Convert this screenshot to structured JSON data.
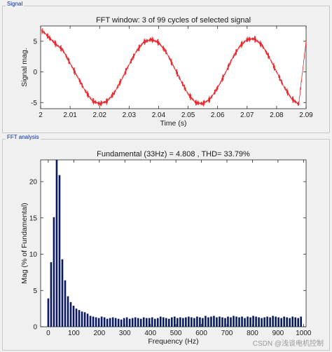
{
  "signal_panel": {
    "title": "Signal"
  },
  "fft_panel": {
    "title": "FFT analysis"
  },
  "watermark": "CSDN @浅谈电机控制",
  "chart_data": [
    {
      "type": "line",
      "title": "FFT window: 3 of 99 cycles of selected signal",
      "xlabel": "Time (s)",
      "ylabel": "Signal mag.",
      "xlim": [
        2,
        2.09
      ],
      "ylim": [
        -6,
        7.5
      ],
      "xticks": [
        "2",
        "2.01",
        "2.02",
        "2.03",
        "2.04",
        "2.05",
        "2.06",
        "2.07",
        "2.08",
        "2.09"
      ],
      "yticks": [
        "-5",
        "0",
        "5"
      ],
      "series": [
        {
          "color": "#e8262b",
          "fundamental_hz": 33,
          "amplitude": 5.1,
          "ripple": 0.6,
          "x": [
            2.0,
            2.005,
            2.0075,
            2.01,
            2.0125,
            2.015,
            2.0175,
            2.02,
            2.0225,
            2.025,
            2.0275,
            2.03,
            2.0325,
            2.035,
            2.0375,
            2.04,
            2.0425,
            2.045,
            2.0475,
            2.05,
            2.0525,
            2.055,
            2.0575,
            2.06,
            2.0625,
            2.065,
            2.0675,
            2.07,
            2.0725,
            2.075,
            2.0775,
            2.08,
            2.0825,
            2.085,
            2.0875,
            2.09
          ],
          "y": [
            7.0,
            4.6,
            3.6,
            1.4,
            -0.8,
            -3.0,
            -4.7,
            -5.2,
            -4.8,
            -3.4,
            -1.2,
            1.2,
            3.4,
            4.9,
            5.3,
            4.8,
            3.3,
            1.0,
            -1.4,
            -3.6,
            -5.0,
            -5.2,
            -4.4,
            -2.6,
            -0.3,
            2.2,
            4.2,
            5.3,
            5.4,
            4.4,
            2.4,
            0.0,
            -2.4,
            -4.3,
            -5.3,
            5.0
          ]
        }
      ]
    },
    {
      "type": "bar",
      "title": "Fundamental (33Hz) = 4.808 , THD= 33.79%",
      "xlabel": "Frequency (Hz)",
      "ylabel": "Mag (% of Fundamental)",
      "xlim": [
        -30,
        1010
      ],
      "ylim": [
        0,
        23
      ],
      "bar_color": "#0b1a5e",
      "xticks": [
        "0",
        "100",
        "200",
        "300",
        "400",
        "500",
        "600",
        "700",
        "800",
        "900",
        "1000"
      ],
      "yticks": [
        "0",
        "5",
        "10",
        "15",
        "20"
      ],
      "x": [
        0,
        11,
        22,
        33,
        44,
        55,
        66,
        77,
        88,
        99,
        110,
        121,
        132,
        143,
        154,
        165,
        176,
        187,
        198,
        209,
        220,
        231,
        242,
        253,
        264,
        275,
        286,
        297,
        308,
        319,
        330,
        341,
        352,
        363,
        374,
        385,
        396,
        407,
        418,
        429,
        440,
        451,
        462,
        473,
        484,
        495,
        506,
        517,
        528,
        539,
        550,
        561,
        572,
        583,
        594,
        605,
        616,
        627,
        638,
        649,
        660,
        671,
        682,
        693,
        704,
        715,
        726,
        737,
        748,
        759,
        770,
        781,
        792,
        803,
        814,
        825,
        836,
        847,
        858,
        869,
        880,
        891,
        902,
        913,
        924,
        935,
        946,
        957,
        968,
        979,
        990
      ],
      "values": [
        3.9,
        8.9,
        15.1,
        23.0,
        20.9,
        9.3,
        6.4,
        4.2,
        3.4,
        2.9,
        2.5,
        2.3,
        2.1,
        2.0,
        1.8,
        1.5,
        1.4,
        1.3,
        1.2,
        1.4,
        1.3,
        1.1,
        1.2,
        1.3,
        1.2,
        1.1,
        1.0,
        1.2,
        1.3,
        1.1,
        1.2,
        1.3,
        1.2,
        1.1,
        1.3,
        1.2,
        1.2,
        1.3,
        1.1,
        1.2,
        1.4,
        1.3,
        1.2,
        1.1,
        1.3,
        1.4,
        1.2,
        1.3,
        1.2,
        1.3,
        1.4,
        1.3,
        1.2,
        1.4,
        1.3,
        1.2,
        1.5,
        1.3,
        1.4,
        1.5,
        1.3,
        1.4,
        1.3,
        1.2,
        1.4,
        1.3,
        1.5,
        1.4,
        1.3,
        1.4,
        1.2,
        1.4,
        1.3,
        1.5,
        1.4,
        1.3,
        1.2,
        1.3,
        1.4,
        1.3,
        1.5,
        1.4,
        1.3,
        1.2,
        1.4,
        1.3,
        1.2,
        1.4,
        1.3,
        1.2,
        1.4
      ]
    }
  ]
}
